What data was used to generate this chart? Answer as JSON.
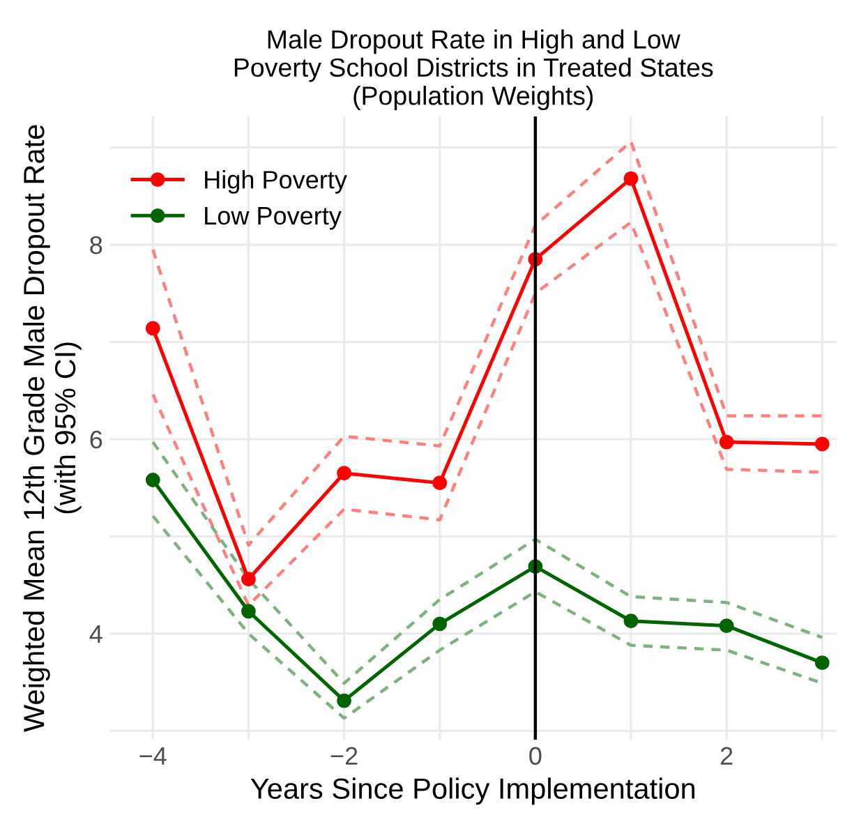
{
  "chart_data": {
    "type": "line",
    "title": "Male Dropout Rate in High and Low\nPoverty School Districts in Treated States\n(Population Weights)",
    "xlabel": "Years Since Policy Implementation",
    "ylabel": "Weighted Mean 12th Grade Male Dropout Rate\n(with 95% CI)",
    "x": [
      -4,
      -3,
      -2,
      -1,
      0,
      1,
      2,
      3
    ],
    "series": [
      {
        "name": "High Poverty",
        "color": "#ff0000",
        "values": [
          7.14,
          4.56,
          5.65,
          5.55,
          7.85,
          8.68,
          5.97,
          5.95
        ]
      },
      {
        "name": "Low Poverty",
        "color": "#006400",
        "values": [
          5.58,
          4.23,
          3.31,
          4.1,
          4.69,
          4.13,
          4.08,
          3.7
        ]
      },
      {
        "color": "#ff8080",
        "line_style": "dashed",
        "marker": "none",
        "values": [
          6.46,
          4.29,
          5.28,
          5.17,
          7.5,
          8.23,
          5.69,
          5.66
        ]
      },
      {
        "color": "#ff8080",
        "line_style": "dashed",
        "marker": "none",
        "values": [
          7.95,
          4.91,
          6.03,
          5.93,
          8.2,
          9.06,
          6.24,
          6.24
        ]
      },
      {
        "color": "#80b180",
        "line_style": "dashed",
        "marker": "none",
        "values": [
          5.21,
          4.0,
          3.13,
          3.83,
          4.43,
          3.88,
          3.83,
          3.49
        ]
      },
      {
        "color": "#80b180",
        "line_style": "dashed",
        "marker": "none",
        "values": [
          5.97,
          4.56,
          3.49,
          4.35,
          4.97,
          4.38,
          4.32,
          3.96
        ]
      }
    ],
    "xlim": [
      -4.45,
      3.15
    ],
    "ylim": [
      2.91,
      9.32
    ],
    "xticks": [
      {
        "value": -4,
        "label": "−4"
      },
      {
        "value": -3,
        "label": null
      },
      {
        "value": -2,
        "label": "−2"
      },
      {
        "value": -1,
        "label": null
      },
      0,
      {
        "value": 1,
        "label": null
      },
      2,
      {
        "value": 3,
        "label": null
      }
    ],
    "yticks": [
      {
        "value": 3,
        "label": null
      },
      4,
      {
        "value": 5,
        "label": null
      },
      6,
      {
        "value": 7,
        "label": null
      },
      8,
      {
        "value": 9,
        "label": null
      }
    ],
    "ref_lines": [
      {
        "axis": "x",
        "value": 0,
        "color": "#000000"
      }
    ],
    "grid": true,
    "legend": "top left",
    "marker": "circle",
    "line_style": "solid"
  }
}
